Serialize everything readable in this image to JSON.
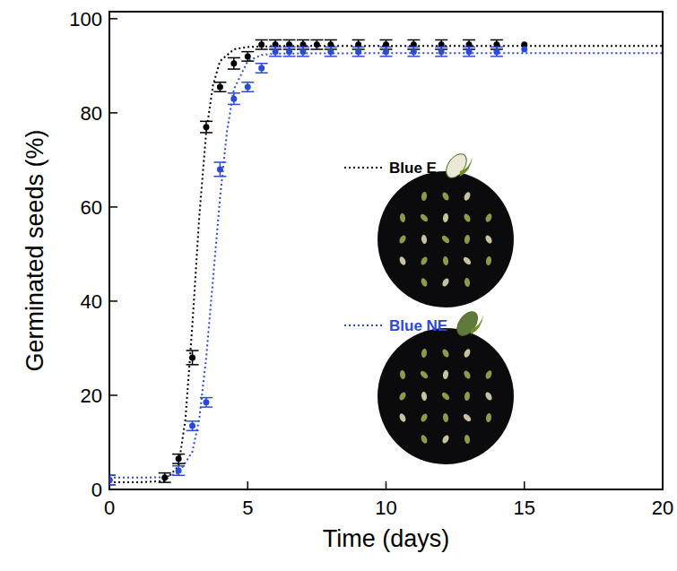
{
  "chart_data": {
    "type": "scatter",
    "x_label": "Time (days)",
    "y_label": "Germinated seeds (%)",
    "xlim": [
      0,
      20
    ],
    "xticks": [
      0,
      5,
      10,
      15,
      20
    ],
    "ylim": [
      0,
      101.5
    ],
    "yticks": [
      0,
      20,
      40,
      60,
      80,
      100
    ],
    "legend": "right",
    "series": [
      {
        "name": "Blue E",
        "color": "#000000",
        "marker": "circle",
        "line_style": "dotted",
        "x": [
          0,
          2,
          2.5,
          3,
          3.5,
          4,
          4.5,
          5,
          5.5,
          6,
          6.5,
          7,
          7.5,
          8,
          9,
          10,
          11,
          12,
          13,
          14,
          15
        ],
        "values": [
          2,
          2.5,
          6.5,
          28,
          77,
          85.5,
          90.5,
          92,
          94.5,
          94.5,
          94.5,
          94.5,
          94.5,
          94.5,
          94.5,
          94.5,
          94.5,
          94.5,
          94.5,
          94.5,
          94.5
        ],
        "errors": [
          1,
          1,
          1,
          1.5,
          1.2,
          1,
          1.2,
          1,
          1,
          1,
          1,
          1,
          1,
          1,
          1,
          1,
          1,
          1,
          1,
          1,
          0
        ],
        "fit": {
          "x": [
            0,
            1,
            2,
            2.5,
            2.75,
            3,
            3.25,
            3.5,
            3.75,
            4,
            4.5,
            5,
            6,
            10,
            15,
            20
          ],
          "values": [
            1.5,
            1.5,
            1.8,
            5,
            15,
            35,
            58,
            76,
            86,
            91,
            93.5,
            94,
            94.2,
            94.2,
            94.2,
            94.2
          ]
        }
      },
      {
        "name": "Blue NE",
        "color": "#2a4bd7",
        "marker": "circle",
        "line_style": "dotted",
        "x": [
          0,
          2.5,
          3,
          3.5,
          4,
          4.5,
          5,
          5.5,
          6,
          6.5,
          7,
          8,
          9,
          10,
          11,
          12,
          13,
          14,
          15
        ],
        "values": [
          2,
          4,
          13.5,
          18.5,
          68,
          83,
          85.5,
          89.5,
          93,
          93,
          93,
          93,
          93,
          93,
          93,
          93,
          93,
          93,
          93.5
        ],
        "errors": [
          1,
          1,
          1,
          1,
          1.5,
          1.2,
          1,
          1,
          1,
          1,
          1,
          1,
          1,
          1,
          1,
          1,
          1,
          1,
          0
        ],
        "fit": {
          "x": [
            0,
            1,
            2,
            2.5,
            3,
            3.25,
            3.5,
            3.75,
            4,
            4.25,
            4.5,
            5,
            5.5,
            6,
            10,
            20
          ],
          "values": [
            2.5,
            2.5,
            2.6,
            3.5,
            8,
            15,
            28,
            45,
            62,
            76,
            85,
            91,
            92.3,
            92.6,
            92.7,
            92.7
          ]
        }
      }
    ]
  }
}
